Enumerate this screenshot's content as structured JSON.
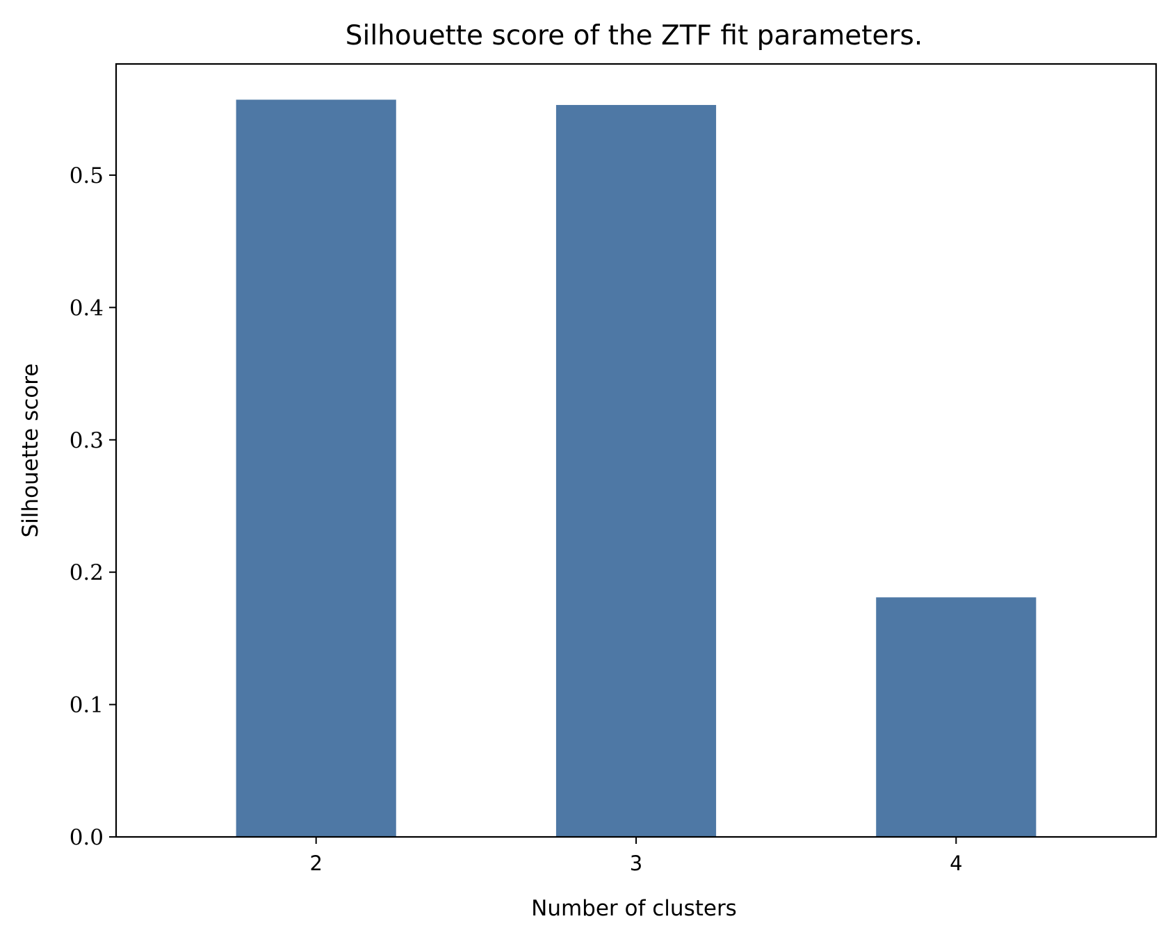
{
  "chart_data": {
    "type": "bar",
    "title": "Silhouette score of the ZTF fit parameters.",
    "xlabel": "Number of clusters",
    "ylabel": "Silhouette score",
    "categories": [
      "2",
      "3",
      "4"
    ],
    "values": [
      0.557,
      0.553,
      0.181
    ],
    "ylim": [
      0,
      0.584
    ],
    "yticks": [
      0.0,
      0.1,
      0.2,
      0.3,
      0.4,
      0.5
    ],
    "ytick_labels": [
      "0.0",
      "0.1",
      "0.2",
      "0.3",
      "0.4",
      "0.5"
    ],
    "grid": false,
    "legend": "none",
    "bar_color": "#4e78a5"
  }
}
